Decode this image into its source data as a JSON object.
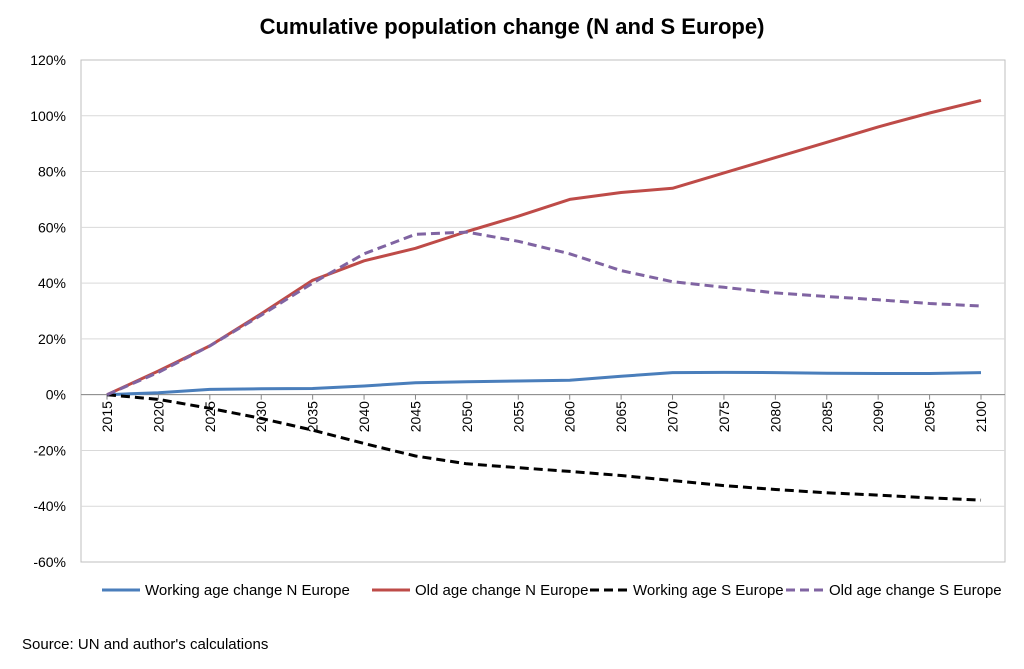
{
  "chart_data": {
    "type": "line",
    "title": "Cumulative population change (N and S Europe)",
    "source": "Source: UN and author's calculations",
    "x": [
      "2015",
      "2020",
      "2025",
      "2030",
      "2035",
      "2040",
      "2045",
      "2050",
      "2055",
      "2060",
      "2065",
      "2070",
      "2075",
      "2080",
      "2085",
      "2090",
      "2095",
      "2100"
    ],
    "ylim": [
      -60,
      120
    ],
    "ytick_step": 20,
    "ytick_suffix": "%",
    "grid": true,
    "legend_position": "bottom",
    "series": [
      {
        "name": "Working age change N Europe",
        "color": "#4a7ebb",
        "dash": "solid",
        "values": [
          0,
          0.7,
          1.9,
          2.1,
          2.2,
          3.1,
          4.3,
          4.6,
          4.9,
          5.2,
          6.6,
          7.9,
          8.0,
          7.9,
          7.7,
          7.6,
          7.6,
          7.9
        ]
      },
      {
        "name": "Old age change N Europe",
        "color": "#be4b48",
        "dash": "solid",
        "values": [
          0,
          8.5,
          17.5,
          29,
          41,
          48,
          52.5,
          58.5,
          64,
          70,
          72.5,
          74,
          79.5,
          85,
          90.5,
          96,
          101,
          105.5
        ]
      },
      {
        "name": "Working age S Europe",
        "color": "#000000",
        "dash": "dashed",
        "values": [
          0,
          -1.7,
          -4.9,
          -8.5,
          -12.7,
          -17.5,
          -22,
          -24.8,
          -26.2,
          -27.5,
          -29,
          -30.8,
          -32.6,
          -34,
          -35.2,
          -36,
          -37,
          -37.8
        ]
      },
      {
        "name": "Old age change S Europe",
        "color": "#8064a2",
        "dash": "dashed",
        "values": [
          0,
          8,
          17.5,
          28.5,
          40,
          50.5,
          57.5,
          58.3,
          55,
          50.5,
          44.5,
          40.5,
          38.5,
          36.5,
          35.2,
          34,
          32.7,
          31.8
        ]
      }
    ]
  }
}
